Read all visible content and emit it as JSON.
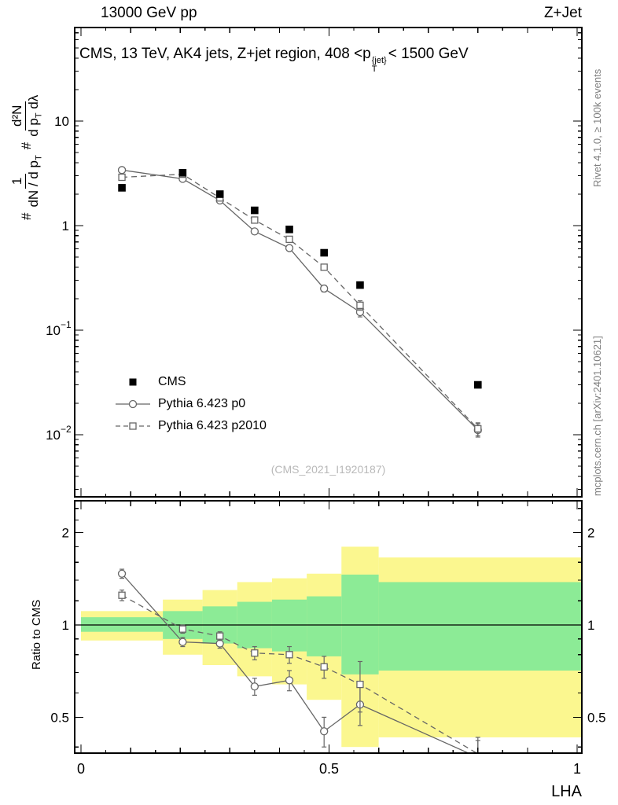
{
  "header": {
    "left": "13000 GeV pp",
    "right": "Z+Jet"
  },
  "title": {
    "part1": "CMS, 13 TeV, AK4 jets, Z+jet region, 408 <p",
    "sup": "{jet}",
    "sub": "T",
    "part2": "< 1500 GeV"
  },
  "watermark": "(CMS_2021_I1920187)",
  "side_notes": {
    "top": "Rivet 4.1.0, ≥ 100k events",
    "bottom": "mcplots.cern.ch [arXiv:2401.10621]"
  },
  "ylabel": {
    "hash1": "#",
    "f1num": "1",
    "f1den_a": "dN / d p",
    "f1den_sub": "T",
    "hash2": "#",
    "f2num": "d²N",
    "f2den_a": "d p",
    "f2den_sub": "T",
    "f2den_b": " dλ"
  },
  "ratio_ylabel": "Ratio to CMS",
  "xlabel": "LHA",
  "legend": [
    {
      "label": "CMS",
      "marker": "filled-square",
      "color": "#000000",
      "line": "none"
    },
    {
      "label": "Pythia 6.423 p0",
      "marker": "open-circle",
      "color": "#666666",
      "line": "solid"
    },
    {
      "label": "Pythia 6.423 p2010",
      "marker": "open-square",
      "color": "#666666",
      "line": "dashed"
    }
  ],
  "colors": {
    "band_yellow": "#fbf78f",
    "band_green": "#8ceb96",
    "frame": "#000000",
    "cms": "#000000",
    "mc_lines": "#666666"
  },
  "axes": {
    "x": {
      "min": -0.013,
      "max": 1.01,
      "major_ticks": [
        0,
        0.5,
        1
      ],
      "tick_labels": [
        "0",
        "0.5",
        "1"
      ],
      "label": "LHA"
    },
    "y_main": {
      "scale": "log",
      "min": 0.0026,
      "max": 79,
      "tick_labels": [
        {
          "v": 10,
          "base": "10",
          "exp": ""
        },
        {
          "v": 1,
          "base": "1",
          "exp": ""
        },
        {
          "v": 0.1,
          "base": "10",
          "exp": "−1"
        },
        {
          "v": 0.01,
          "base": "10",
          "exp": "−2"
        }
      ]
    },
    "y_ratio": {
      "scale": "log",
      "min": 0.382,
      "max": 2.54,
      "major_ticks": [
        0.5,
        1,
        2
      ],
      "tick_labels": [
        "0.5",
        "1",
        "2"
      ]
    }
  },
  "chart_data": [
    {
      "type": "line",
      "panel": "main",
      "yscale": "log",
      "title": "CMS, 13 TeV, AK4 jets, Z+jet region, 408 <pT{jet}< 1500 GeV",
      "xlabel": "LHA",
      "ylabel": "# 1/(dN/dpT) # d²N/(dpT dλ)",
      "xlim": [
        -0.013,
        1.01
      ],
      "ylim": [
        0.0026,
        79
      ],
      "x": [
        0.0825,
        0.205,
        0.28,
        0.35,
        0.42,
        0.49,
        0.5625,
        0.8
      ],
      "series": [
        {
          "name": "CMS",
          "marker": "filled-square",
          "color": "#000000",
          "line": "none",
          "y": [
            2.3,
            3.2,
            2.0,
            1.4,
            0.92,
            0.55,
            0.27,
            0.03
          ],
          "yerr": [
            0,
            0,
            0,
            0,
            0,
            0,
            0,
            0
          ]
        },
        {
          "name": "Pythia 6.423 p0",
          "marker": "open-circle",
          "color": "#666666",
          "line": "solid",
          "y": [
            3.4,
            2.8,
            1.74,
            0.88,
            0.61,
            0.25,
            0.149,
            0.0111
          ],
          "yerr": [
            0.12,
            0.09,
            0.06,
            0.04,
            0.03,
            0.018,
            0.015,
            0.0016
          ]
        },
        {
          "name": "Pythia 6.423 p2010",
          "marker": "open-square",
          "color": "#666666",
          "line": "dashed",
          "y": [
            2.9,
            3.1,
            1.84,
            1.13,
            0.74,
            0.4,
            0.173,
            0.0114
          ],
          "yerr": [
            0.12,
            0.09,
            0.06,
            0.04,
            0.03,
            0.02,
            0.018,
            0.0016
          ]
        }
      ]
    },
    {
      "type": "ratio",
      "panel": "ratio",
      "yscale": "log",
      "ylabel": "Ratio to CMS",
      "reference": 1,
      "ylim": [
        0.382,
        2.54
      ],
      "bins": [
        0.0,
        0.165,
        0.245,
        0.315,
        0.385,
        0.455,
        0.525,
        0.6,
        1.01
      ],
      "band_yellow_lo": [
        0.89,
        0.8,
        0.74,
        0.68,
        0.64,
        0.57,
        0.4,
        0.43
      ],
      "band_yellow_hi": [
        1.11,
        1.21,
        1.3,
        1.38,
        1.42,
        1.47,
        1.8,
        1.66
      ],
      "band_green_lo": [
        0.95,
        0.9,
        0.87,
        0.84,
        0.82,
        0.79,
        0.69,
        0.71
      ],
      "band_green_hi": [
        1.06,
        1.11,
        1.15,
        1.19,
        1.21,
        1.24,
        1.46,
        1.38
      ],
      "x": [
        0.0825,
        0.205,
        0.28,
        0.35,
        0.42,
        0.49,
        0.5625,
        0.8
      ],
      "series": [
        {
          "name": "Pythia 6.423 p0",
          "marker": "open-circle",
          "color": "#666666",
          "line": "solid",
          "y": [
            1.47,
            0.88,
            0.87,
            0.63,
            0.66,
            0.45,
            0.55,
            0.37
          ],
          "yerr": [
            0.05,
            0.03,
            0.03,
            0.04,
            0.05,
            0.05,
            0.08,
            0.05
          ]
        },
        {
          "name": "Pythia 6.423 p2010",
          "marker": "open-square",
          "color": "#666666",
          "line": "dashed",
          "y": [
            1.25,
            0.97,
            0.92,
            0.81,
            0.8,
            0.73,
            0.64,
            0.38
          ],
          "yerr": [
            0.05,
            0.03,
            0.03,
            0.04,
            0.05,
            0.06,
            0.12,
            0.05
          ]
        }
      ]
    }
  ]
}
